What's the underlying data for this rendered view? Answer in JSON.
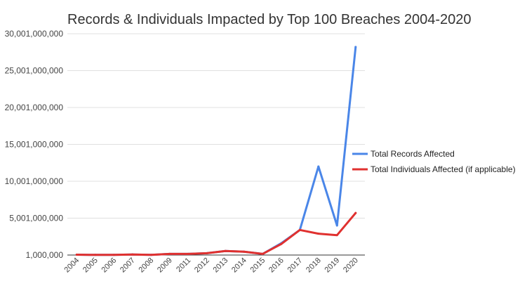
{
  "chart_data": {
    "type": "line",
    "title": "Records & Individuals Impacted by Top 100 Breaches 2004-2020",
    "xlabel": "",
    "ylabel": "",
    "x": [
      "2004",
      "2005",
      "2006",
      "2007",
      "2008",
      "2009",
      "2011",
      "2012",
      "2013",
      "2014",
      "2015",
      "2016",
      "2017",
      "2018",
      "2019",
      "2020"
    ],
    "yticks": [
      1000000,
      5001000000,
      10001000000,
      15001000000,
      20001000000,
      25001000000,
      30001000000
    ],
    "ytick_labels": [
      "1,000,000",
      "5,001,000,000",
      "10,001,000,000",
      "15,001,000,000",
      "20,001,000,000",
      "25,001,000,000",
      "30,001,000,000"
    ],
    "ylim": [
      1000000,
      30001000000
    ],
    "grid": true,
    "legend_position": "right",
    "series": [
      {
        "name": "Total Records Affected",
        "color": "#4a86e8",
        "values": [
          50000000,
          20000000,
          20000000,
          80000000,
          20000000,
          150000000,
          150000000,
          250000000,
          550000000,
          450000000,
          150000000,
          1600000000,
          3400000000,
          12000000000,
          4000000000,
          28200000000
        ]
      },
      {
        "name": "Total Individuals Affected (if applicable)",
        "color": "#e0312f",
        "values": [
          50000000,
          20000000,
          20000000,
          80000000,
          20000000,
          150000000,
          150000000,
          250000000,
          550000000,
          450000000,
          150000000,
          1500000000,
          3400000000,
          2900000000,
          2700000000,
          5700000000
        ]
      }
    ]
  }
}
